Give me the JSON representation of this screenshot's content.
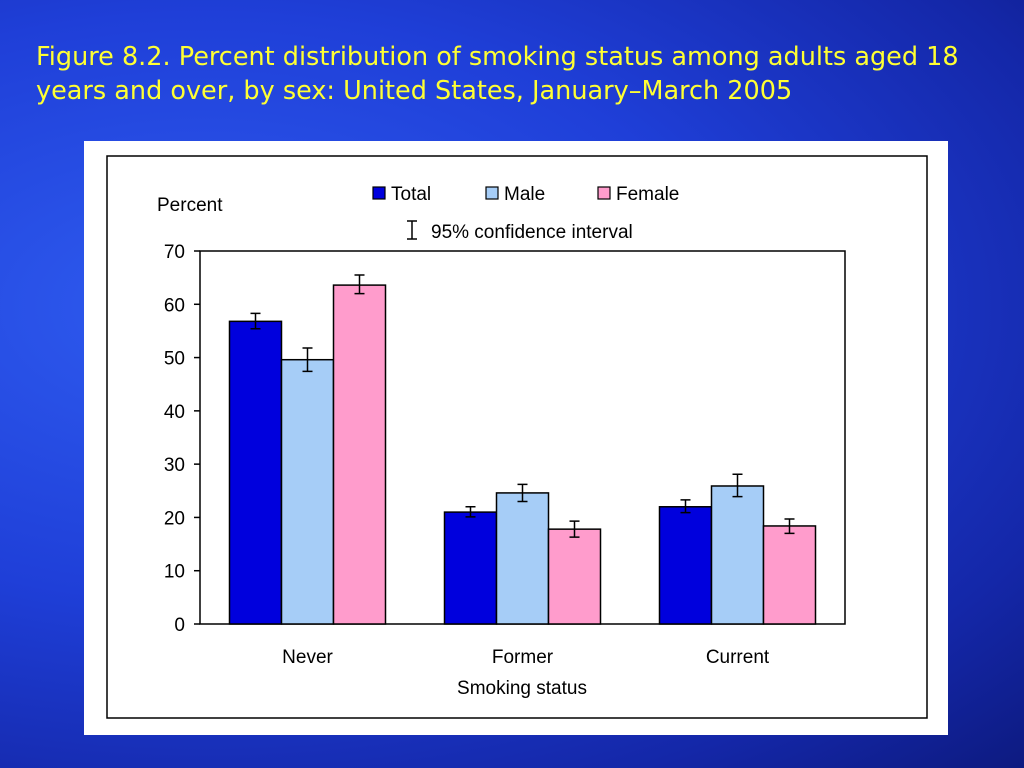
{
  "slide": {
    "title": "Figure 8.2. Percent distribution of smoking status among adults aged 18 years and over, by sex: United States, January–March 2005"
  },
  "colors": {
    "total": "#0000dd",
    "male": "#a6cdf7",
    "female": "#ff9ccc",
    "title_text": "#ffff33"
  },
  "chart_data": {
    "type": "bar",
    "title": "",
    "xlabel": "Smoking status",
    "ylabel": "Percent",
    "ylim": [
      0,
      70
    ],
    "yticks": [
      0,
      10,
      20,
      30,
      40,
      50,
      60,
      70
    ],
    "categories": [
      "Never",
      "Former",
      "Current"
    ],
    "series": [
      {
        "name": "Total",
        "values": [
          56.8,
          21.0,
          22.0
        ],
        "ci_low": [
          55.4,
          20.1,
          20.9
        ],
        "ci_high": [
          58.3,
          22.0,
          23.3
        ]
      },
      {
        "name": "Male",
        "values": [
          49.6,
          24.6,
          25.9
        ],
        "ci_low": [
          47.4,
          23.0,
          23.9
        ],
        "ci_high": [
          51.8,
          26.2,
          28.1
        ]
      },
      {
        "name": "Female",
        "values": [
          63.6,
          17.8,
          18.4
        ],
        "ci_low": [
          62.0,
          16.3,
          17.0
        ],
        "ci_high": [
          65.5,
          19.3,
          19.7
        ]
      }
    ],
    "legend_position": "top",
    "ci_legend_label": "95% confidence interval",
    "grid": false
  }
}
